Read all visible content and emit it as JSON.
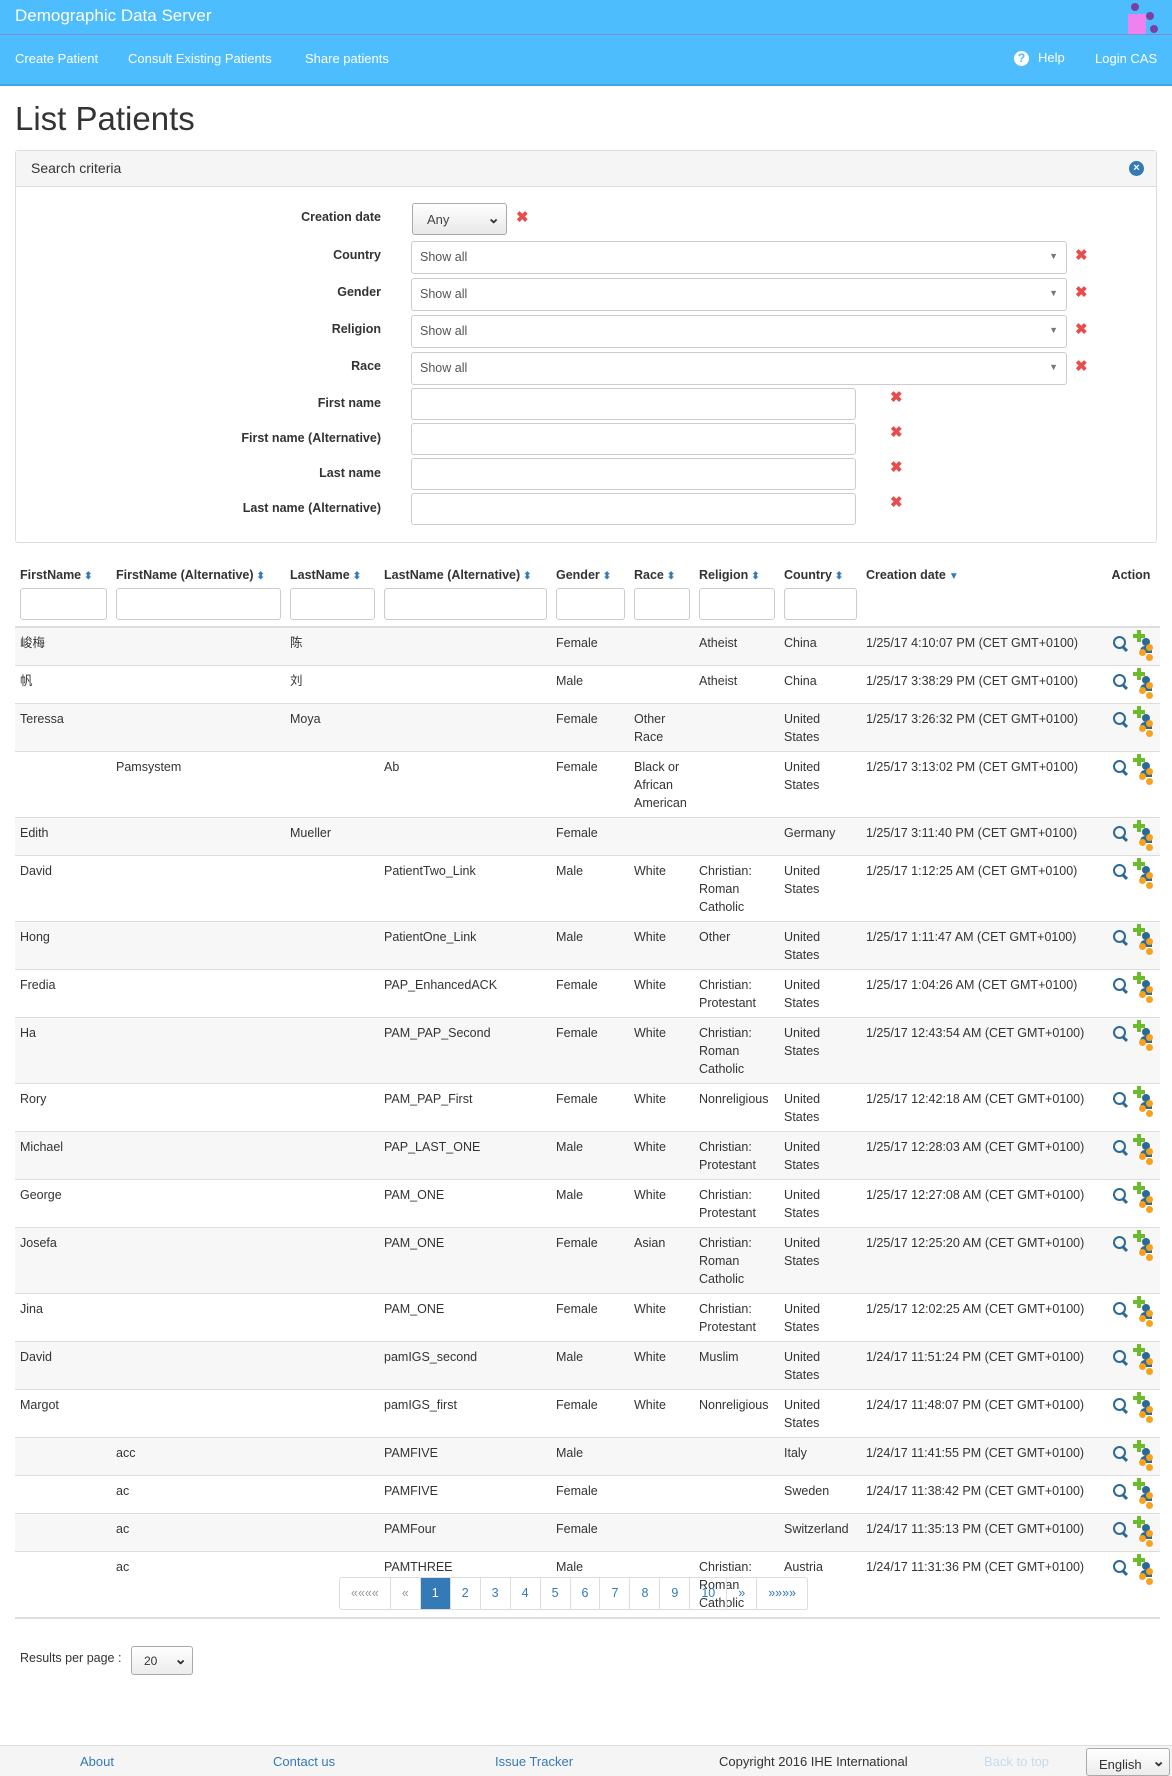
{
  "app": {
    "title": "Demographic Data Server",
    "accent": "#4dbdfe"
  },
  "nav": {
    "items": [
      "Create Patient",
      "Consult Existing Patients",
      "Share patients"
    ],
    "help": "Help",
    "login": "Login CAS"
  },
  "page_title": "List Patients",
  "search": {
    "title": "Search criteria",
    "creation_date": {
      "label": "Creation date",
      "value": "Any"
    },
    "selects": [
      {
        "label": "Country",
        "value": "Show all"
      },
      {
        "label": "Gender",
        "value": "Show all"
      },
      {
        "label": "Religion",
        "value": "Show all"
      },
      {
        "label": "Race",
        "value": "Show all"
      }
    ],
    "texts": [
      {
        "label": "First name",
        "value": ""
      },
      {
        "label": "First name (Alternative)",
        "value": ""
      },
      {
        "label": "Last name",
        "value": ""
      },
      {
        "label": "Last name (Alternative)",
        "value": ""
      }
    ]
  },
  "table": {
    "columns": [
      "FirstName",
      "FirstName (Alternative)",
      "LastName",
      "LastName (Alternative)",
      "Gender",
      "Race",
      "Religion",
      "Country",
      "Creation date",
      "Action"
    ],
    "rows": [
      [
        "峻梅",
        "",
        "陈",
        "",
        "Female",
        "",
        "Atheist",
        "China",
        "1/25/17 4:10:07 PM (CET GMT+0100)"
      ],
      [
        "帆",
        "",
        "刘",
        "",
        "Male",
        "",
        "Atheist",
        "China",
        "1/25/17 3:38:29 PM (CET GMT+0100)"
      ],
      [
        "Teressa",
        "",
        "Moya",
        "",
        "Female",
        "Other Race",
        "",
        "United States",
        "1/25/17 3:26:32 PM (CET GMT+0100)"
      ],
      [
        "",
        "Pamsystem",
        "",
        "Ab",
        "Female",
        "Black or African American",
        "",
        "United States",
        "1/25/17 3:13:02 PM (CET GMT+0100)"
      ],
      [
        "Edith",
        "",
        "Mueller",
        "",
        "Female",
        "",
        "",
        "Germany",
        "1/25/17 3:11:40 PM (CET GMT+0100)"
      ],
      [
        "David",
        "",
        "",
        "PatientTwo_Link",
        "Male",
        "White",
        "Christian: Roman Catholic",
        "United States",
        "1/25/17 1:12:25 AM (CET GMT+0100)"
      ],
      [
        "Hong",
        "",
        "",
        "PatientOne_Link",
        "Male",
        "White",
        "Other",
        "United States",
        "1/25/17 1:11:47 AM (CET GMT+0100)"
      ],
      [
        "Fredia",
        "",
        "",
        "PAP_EnhancedACK",
        "Female",
        "White",
        "Christian: Protestant",
        "United States",
        "1/25/17 1:04:26 AM (CET GMT+0100)"
      ],
      [
        "Ha",
        "",
        "",
        "PAM_PAP_Second",
        "Female",
        "White",
        "Christian: Roman Catholic",
        "United States",
        "1/25/17 12:43:54 AM (CET GMT+0100)"
      ],
      [
        "Rory",
        "",
        "",
        "PAM_PAP_First",
        "Female",
        "White",
        "Nonreligious",
        "United States",
        "1/25/17 12:42:18 AM (CET GMT+0100)"
      ],
      [
        "Michael",
        "",
        "",
        "PAP_LAST_ONE",
        "Male",
        "White",
        "Christian: Protestant",
        "United States",
        "1/25/17 12:28:03 AM (CET GMT+0100)"
      ],
      [
        "George",
        "",
        "",
        "PAM_ONE",
        "Male",
        "White",
        "Christian: Protestant",
        "United States",
        "1/25/17 12:27:08 AM (CET GMT+0100)"
      ],
      [
        "Josefa",
        "",
        "",
        "PAM_ONE",
        "Female",
        "Asian",
        "Christian: Roman Catholic",
        "United States",
        "1/25/17 12:25:20 AM (CET GMT+0100)"
      ],
      [
        "Jina",
        "",
        "",
        "PAM_ONE",
        "Female",
        "White",
        "Christian: Protestant",
        "United States",
        "1/25/17 12:02:25 AM (CET GMT+0100)"
      ],
      [
        "David",
        "",
        "",
        "pamIGS_second",
        "Male",
        "White",
        "Muslim",
        "United States",
        "1/24/17 11:51:24 PM (CET GMT+0100)"
      ],
      [
        "Margot",
        "",
        "",
        "pamIGS_first",
        "Female",
        "White",
        "Nonreligious",
        "United States",
        "1/24/17 11:48:07 PM (CET GMT+0100)"
      ],
      [
        "",
        "acc",
        "",
        "PAMFIVE",
        "Male",
        "",
        "",
        "Italy",
        "1/24/17 11:41:55 PM (CET GMT+0100)"
      ],
      [
        "",
        "ac",
        "",
        "PAMFIVE",
        "Female",
        "",
        "",
        "Sweden",
        "1/24/17 11:38:42 PM (CET GMT+0100)"
      ],
      [
        "",
        "ac",
        "",
        "PAMFour",
        "Female",
        "",
        "",
        "Switzerland",
        "1/24/17 11:35:13 PM (CET GMT+0100)"
      ],
      [
        "",
        "ac",
        "",
        "PAMTHREE",
        "Male",
        "",
        "Christian: Roman Catholic",
        "Austria",
        "1/24/17 11:31:36 PM (CET GMT+0100)"
      ]
    ]
  },
  "pagination": {
    "items": [
      "««««",
      "«",
      "1",
      "2",
      "3",
      "4",
      "5",
      "6",
      "7",
      "8",
      "9",
      "10",
      "»",
      "»»»»"
    ],
    "current": "1"
  },
  "results_per_page": {
    "label": "Results per page :",
    "value": "20"
  },
  "footer": {
    "about": "About",
    "contact": "Contact us",
    "issues": "Issue Tracker",
    "copyright": "Copyright 2016 IHE International",
    "back_to_top": "Back to top",
    "language": "English"
  }
}
